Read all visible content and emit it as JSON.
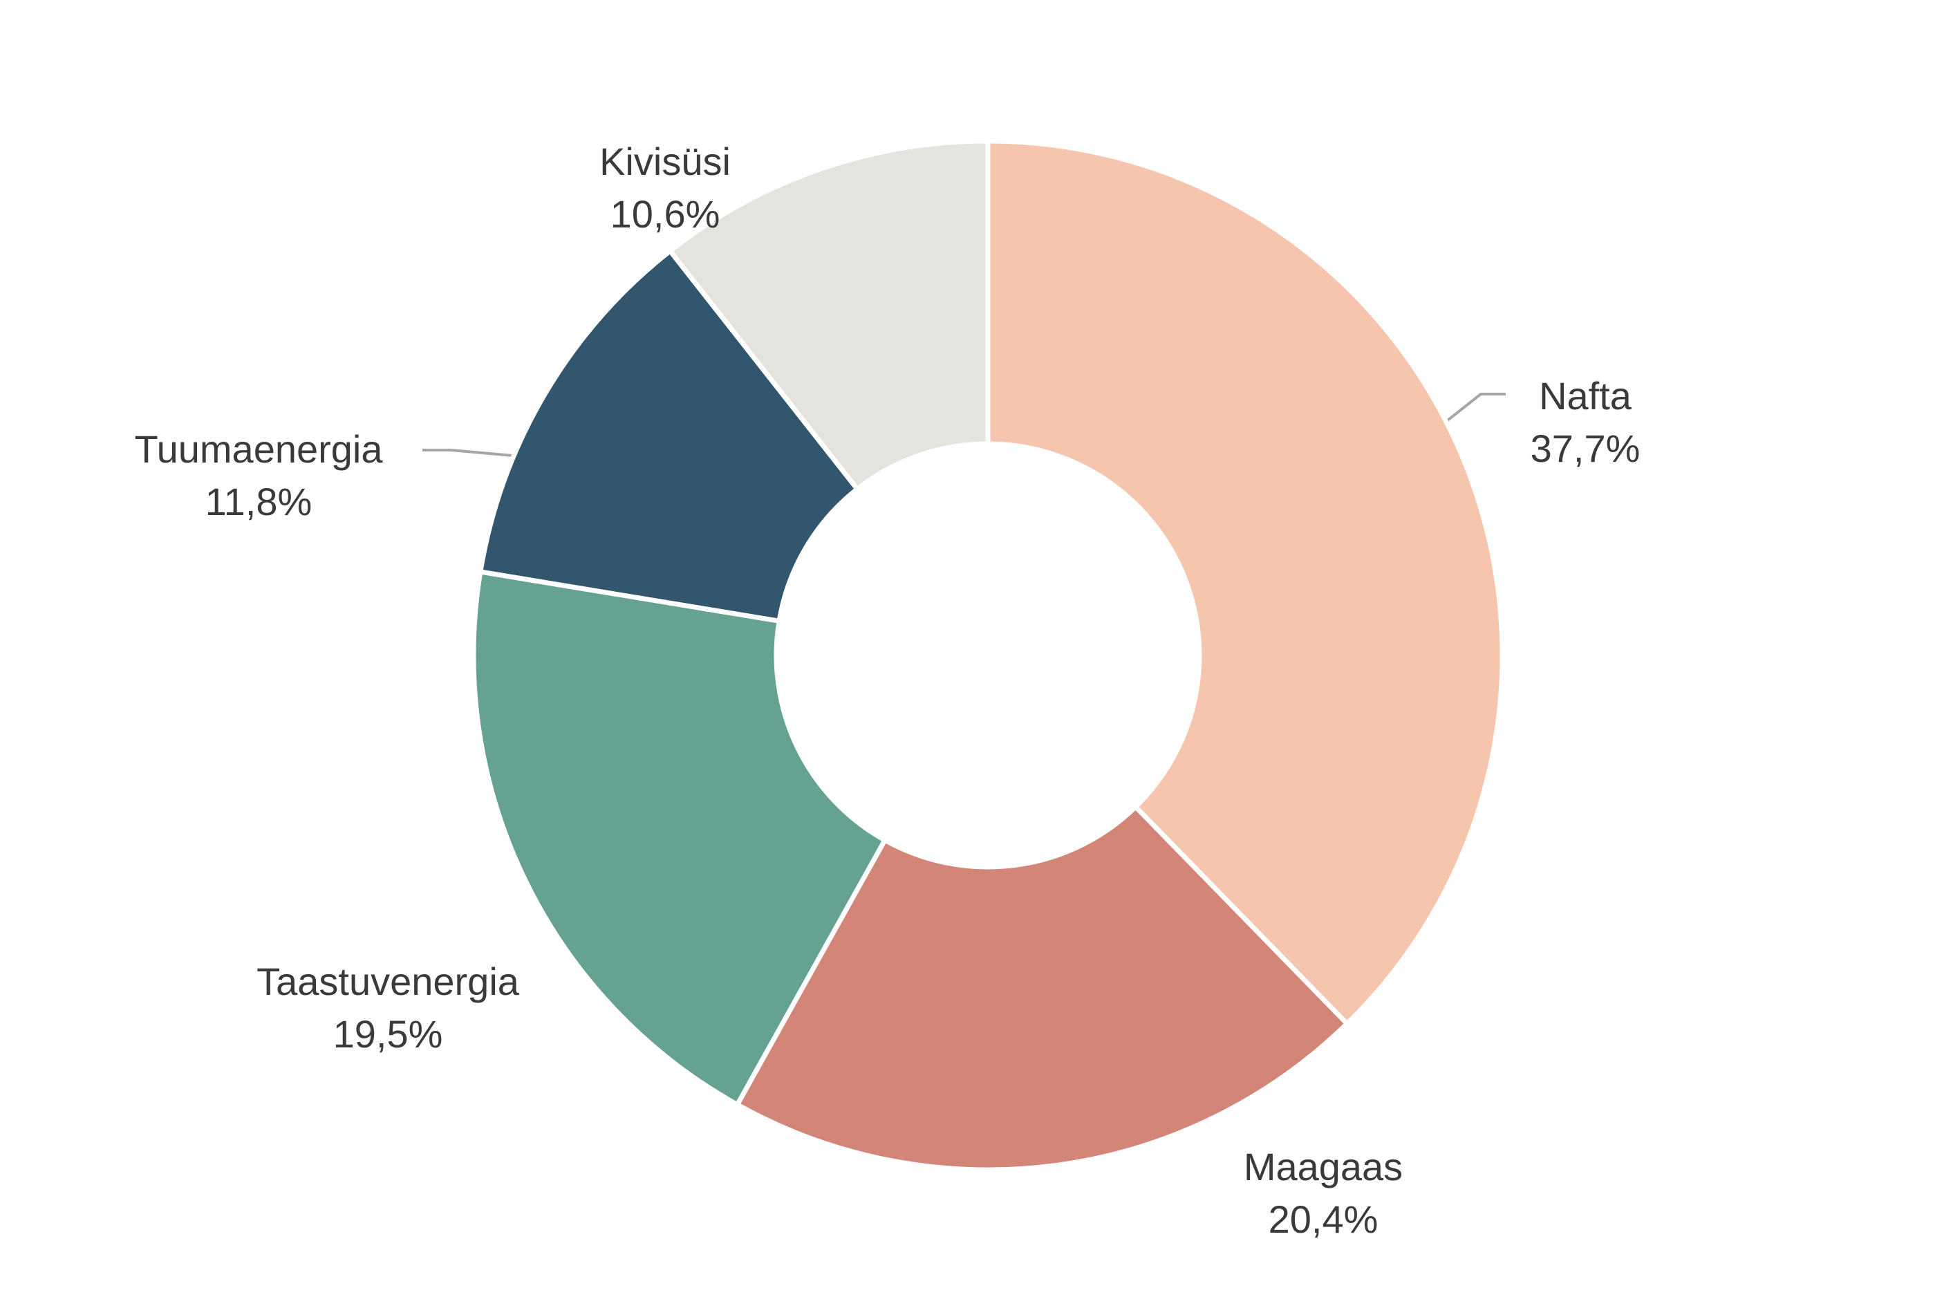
{
  "chart_data": {
    "type": "donut",
    "categories": [
      "Nafta",
      "Maagaas",
      "Taastuvenergia",
      "Tuumaenergia",
      "Kivisüsi"
    ],
    "values": [
      37.7,
      20.4,
      19.5,
      11.8,
      10.6
    ],
    "value_labels": [
      "37,7%",
      "20,4%",
      "19,5%",
      "11,8%",
      "10,6%"
    ],
    "colors": [
      "#f5c6ad",
      "#d38577",
      "#66a292",
      "#32566d",
      "#e4e3de"
    ]
  }
}
